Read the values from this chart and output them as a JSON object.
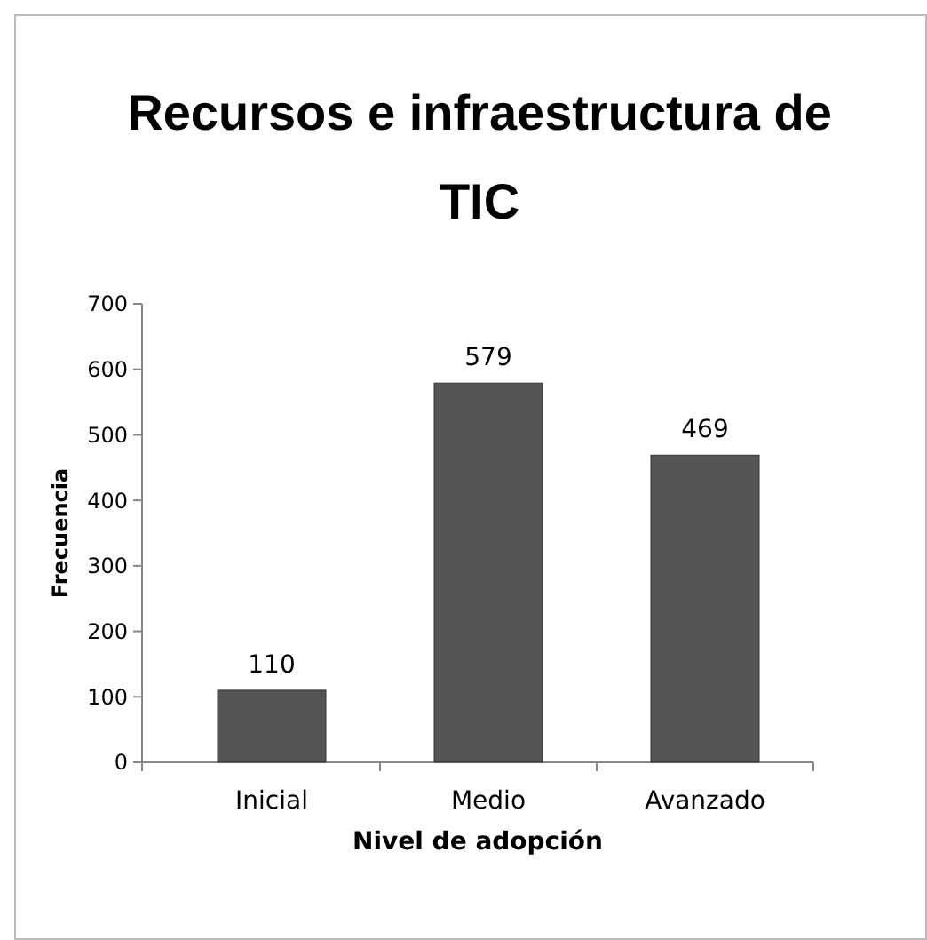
{
  "chart_data": {
    "type": "bar",
    "title": "Recursos e infraestructura de TIC",
    "xlabel": "Nivel de adopción",
    "ylabel": "Frecuencia",
    "categories": [
      "Inicial",
      "Medio",
      "Avanzado"
    ],
    "values": [
      110,
      579,
      469
    ],
    "color": "#555555",
    "ylim": [
      0,
      700
    ],
    "yticks": [
      0,
      100,
      200,
      300,
      400,
      500,
      600,
      700
    ],
    "data_labels": true
  }
}
